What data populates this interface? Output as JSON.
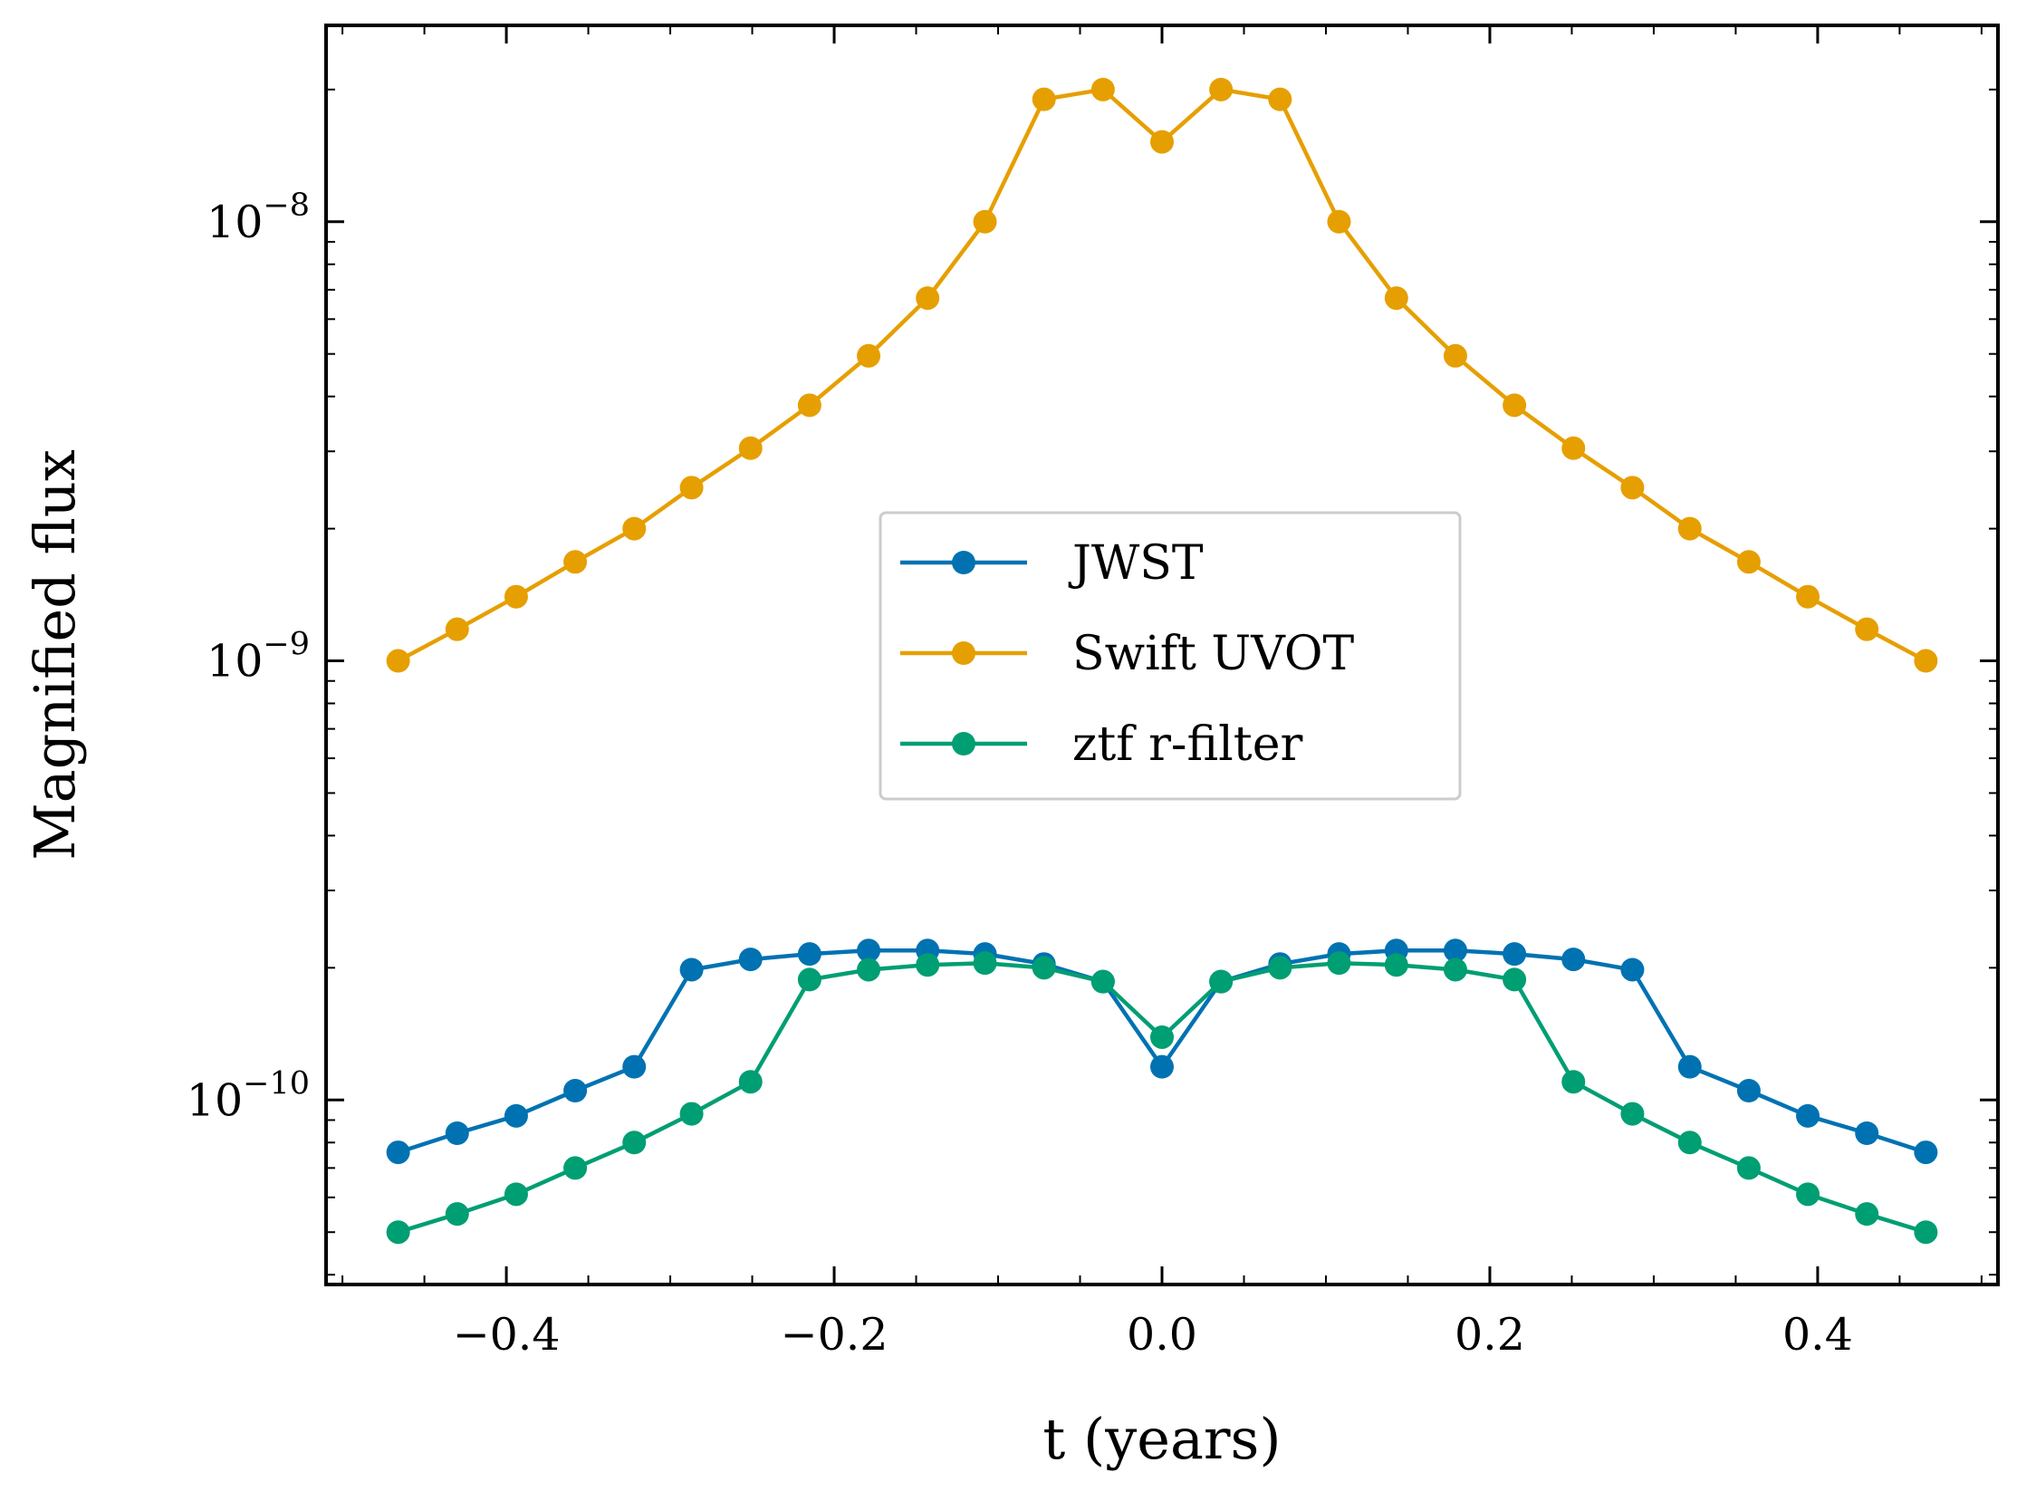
{
  "chart_data": {
    "type": "line",
    "xlabel": "t (years)",
    "ylabel": "Magnified flux",
    "y_scale": "log",
    "xlim": [
      -0.51,
      0.51
    ],
    "ylim": [
      3.8e-11,
      2.8e-08
    ],
    "x_ticks": [
      {
        "value": -0.4,
        "label": "−0.4"
      },
      {
        "value": -0.2,
        "label": "−0.2"
      },
      {
        "value": 0.0,
        "label": "0.0"
      },
      {
        "value": 0.2,
        "label": "0.2"
      },
      {
        "value": 0.4,
        "label": "0.4"
      }
    ],
    "y_ticks": [
      {
        "value": 1e-10,
        "base": "10",
        "exponent": "−10"
      },
      {
        "value": 1e-09,
        "base": "10",
        "exponent": "−9"
      },
      {
        "value": 1e-08,
        "base": "10",
        "exponent": "−8"
      }
    ],
    "grid": false,
    "legend_position": "center",
    "x": [
      -0.466,
      -0.43,
      -0.394,
      -0.358,
      -0.322,
      -0.287,
      -0.251,
      -0.215,
      -0.179,
      -0.143,
      -0.108,
      -0.072,
      -0.036,
      0.0,
      0.036,
      0.072,
      0.108,
      0.143,
      0.179,
      0.215,
      0.251,
      0.287,
      0.322,
      0.358,
      0.394,
      0.43,
      0.466
    ],
    "series": [
      {
        "name": "JWST",
        "color": "#0072b2",
        "values": [
          7.6e-11,
          8.4e-11,
          9.2e-11,
          1.05e-10,
          1.19e-10,
          1.98e-10,
          2.09e-10,
          2.15e-10,
          2.19e-10,
          2.19e-10,
          2.15e-10,
          2.04e-10,
          1.86e-10,
          1.19e-10,
          1.86e-10,
          2.04e-10,
          2.15e-10,
          2.19e-10,
          2.19e-10,
          2.15e-10,
          2.09e-10,
          1.98e-10,
          1.19e-10,
          1.05e-10,
          9.2e-11,
          8.4e-11,
          7.6e-11
        ]
      },
      {
        "name": "Swift UVOT",
        "color": "#e69f00",
        "values": [
          1e-09,
          1.18e-09,
          1.4e-09,
          1.68e-09,
          2e-09,
          2.48e-09,
          3.05e-09,
          3.82e-09,
          4.95e-09,
          6.7e-09,
          1e-08,
          1.9e-08,
          2e-08,
          1.52e-08,
          2e-08,
          1.9e-08,
          1e-08,
          6.7e-09,
          4.95e-09,
          3.82e-09,
          3.05e-09,
          2.48e-09,
          2e-09,
          1.68e-09,
          1.4e-09,
          1.18e-09,
          1e-09
        ]
      },
      {
        "name": "ztf r-filter",
        "color": "#009e73",
        "values": [
          5e-11,
          5.5e-11,
          6.1e-11,
          7e-11,
          8e-11,
          9.3e-11,
          1.1e-10,
          1.88e-10,
          1.98e-10,
          2.03e-10,
          2.05e-10,
          2e-10,
          1.86e-10,
          1.39e-10,
          1.86e-10,
          2e-10,
          2.05e-10,
          2.03e-10,
          1.98e-10,
          1.88e-10,
          1.1e-10,
          9.3e-11,
          8e-11,
          7e-11,
          6.1e-11,
          5.5e-11,
          5e-11
        ]
      }
    ]
  }
}
